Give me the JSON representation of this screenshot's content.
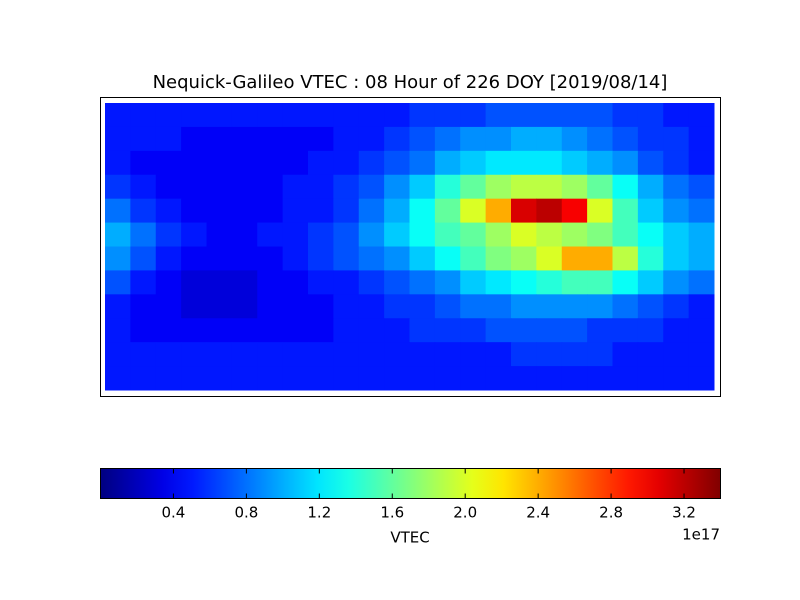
{
  "chart_data": {
    "type": "heatmap",
    "title": "Nequick-Galileo VTEC : 08 Hour of 226 DOY [2019/08/14]",
    "colormap": "jet",
    "colorbar_label": "VTEC",
    "colorbar_offset": "1e17",
    "zlim": [
      0,
      3.4
    ],
    "zticks": [
      0.4,
      0.8,
      1.2,
      1.6,
      {
        "value": 2,
        "label": "2.0"
      },
      2.4,
      2.8,
      3.2
    ],
    "z": [
      [
        0.5,
        0.5,
        0.5,
        0.5,
        0.5,
        0.5,
        0.5,
        0.5,
        0.5,
        0.5,
        0.5,
        0.5,
        0.6,
        0.6,
        0.6,
        0.7,
        0.7,
        0.7,
        0.7,
        0.7,
        0.6,
        0.6,
        0.5,
        0.5
      ],
      [
        0.5,
        0.5,
        0.5,
        0.4,
        0.4,
        0.4,
        0.4,
        0.4,
        0.4,
        0.5,
        0.5,
        0.6,
        0.7,
        0.8,
        0.9,
        0.9,
        1.0,
        1.0,
        0.9,
        0.8,
        0.7,
        0.6,
        0.6,
        0.5
      ],
      [
        0.5,
        0.4,
        0.4,
        0.4,
        0.4,
        0.4,
        0.4,
        0.4,
        0.5,
        0.5,
        0.6,
        0.7,
        0.8,
        1.0,
        1.1,
        1.2,
        1.2,
        1.2,
        1.1,
        1.0,
        0.9,
        0.7,
        0.6,
        0.5
      ],
      [
        0.6,
        0.5,
        0.4,
        0.4,
        0.4,
        0.4,
        0.4,
        0.5,
        0.5,
        0.6,
        0.7,
        0.9,
        1.1,
        1.4,
        1.6,
        1.8,
        1.9,
        1.9,
        1.8,
        1.6,
        1.3,
        1.0,
        0.8,
        0.7
      ],
      [
        0.8,
        0.6,
        0.5,
        0.4,
        0.4,
        0.4,
        0.4,
        0.5,
        0.5,
        0.6,
        0.8,
        1.0,
        1.3,
        1.6,
        2.0,
        2.4,
        3.1,
        3.2,
        3.0,
        2.0,
        1.5,
        1.1,
        0.9,
        0.8
      ],
      [
        1.0,
        0.8,
        0.6,
        0.5,
        0.4,
        0.4,
        0.5,
        0.5,
        0.6,
        0.7,
        0.9,
        1.1,
        1.3,
        1.5,
        1.6,
        1.8,
        2.0,
        1.9,
        1.8,
        1.7,
        1.5,
        1.3,
        1.1,
        1.0
      ],
      [
        0.9,
        0.7,
        0.5,
        0.4,
        0.4,
        0.4,
        0.4,
        0.5,
        0.6,
        0.7,
        0.8,
        0.9,
        1.1,
        1.3,
        1.5,
        1.7,
        1.8,
        2.0,
        2.4,
        2.4,
        1.9,
        1.4,
        1.1,
        1.0
      ],
      [
        0.7,
        0.5,
        0.4,
        0.3,
        0.3,
        0.3,
        0.4,
        0.4,
        0.5,
        0.5,
        0.6,
        0.7,
        0.8,
        0.9,
        1.1,
        1.2,
        1.3,
        1.4,
        1.5,
        1.5,
        1.3,
        1.1,
        0.9,
        0.8
      ],
      [
        0.5,
        0.4,
        0.4,
        0.3,
        0.3,
        0.3,
        0.4,
        0.4,
        0.4,
        0.5,
        0.5,
        0.6,
        0.6,
        0.7,
        0.8,
        0.8,
        0.9,
        0.9,
        0.9,
        0.9,
        0.8,
        0.7,
        0.6,
        0.5
      ],
      [
        0.5,
        0.4,
        0.4,
        0.4,
        0.4,
        0.4,
        0.4,
        0.4,
        0.4,
        0.5,
        0.5,
        0.5,
        0.6,
        0.6,
        0.6,
        0.7,
        0.7,
        0.7,
        0.7,
        0.6,
        0.6,
        0.6,
        0.5,
        0.5
      ],
      [
        0.5,
        0.5,
        0.5,
        0.5,
        0.5,
        0.5,
        0.5,
        0.5,
        0.5,
        0.5,
        0.5,
        0.5,
        0.5,
        0.5,
        0.5,
        0.5,
        0.6,
        0.6,
        0.6,
        0.6,
        0.5,
        0.5,
        0.5,
        0.5
      ],
      [
        0.5,
        0.5,
        0.5,
        0.5,
        0.5,
        0.5,
        0.5,
        0.5,
        0.5,
        0.5,
        0.5,
        0.5,
        0.5,
        0.5,
        0.5,
        0.5,
        0.5,
        0.5,
        0.5,
        0.5,
        0.5,
        0.5,
        0.5,
        0.5
      ]
    ]
  }
}
